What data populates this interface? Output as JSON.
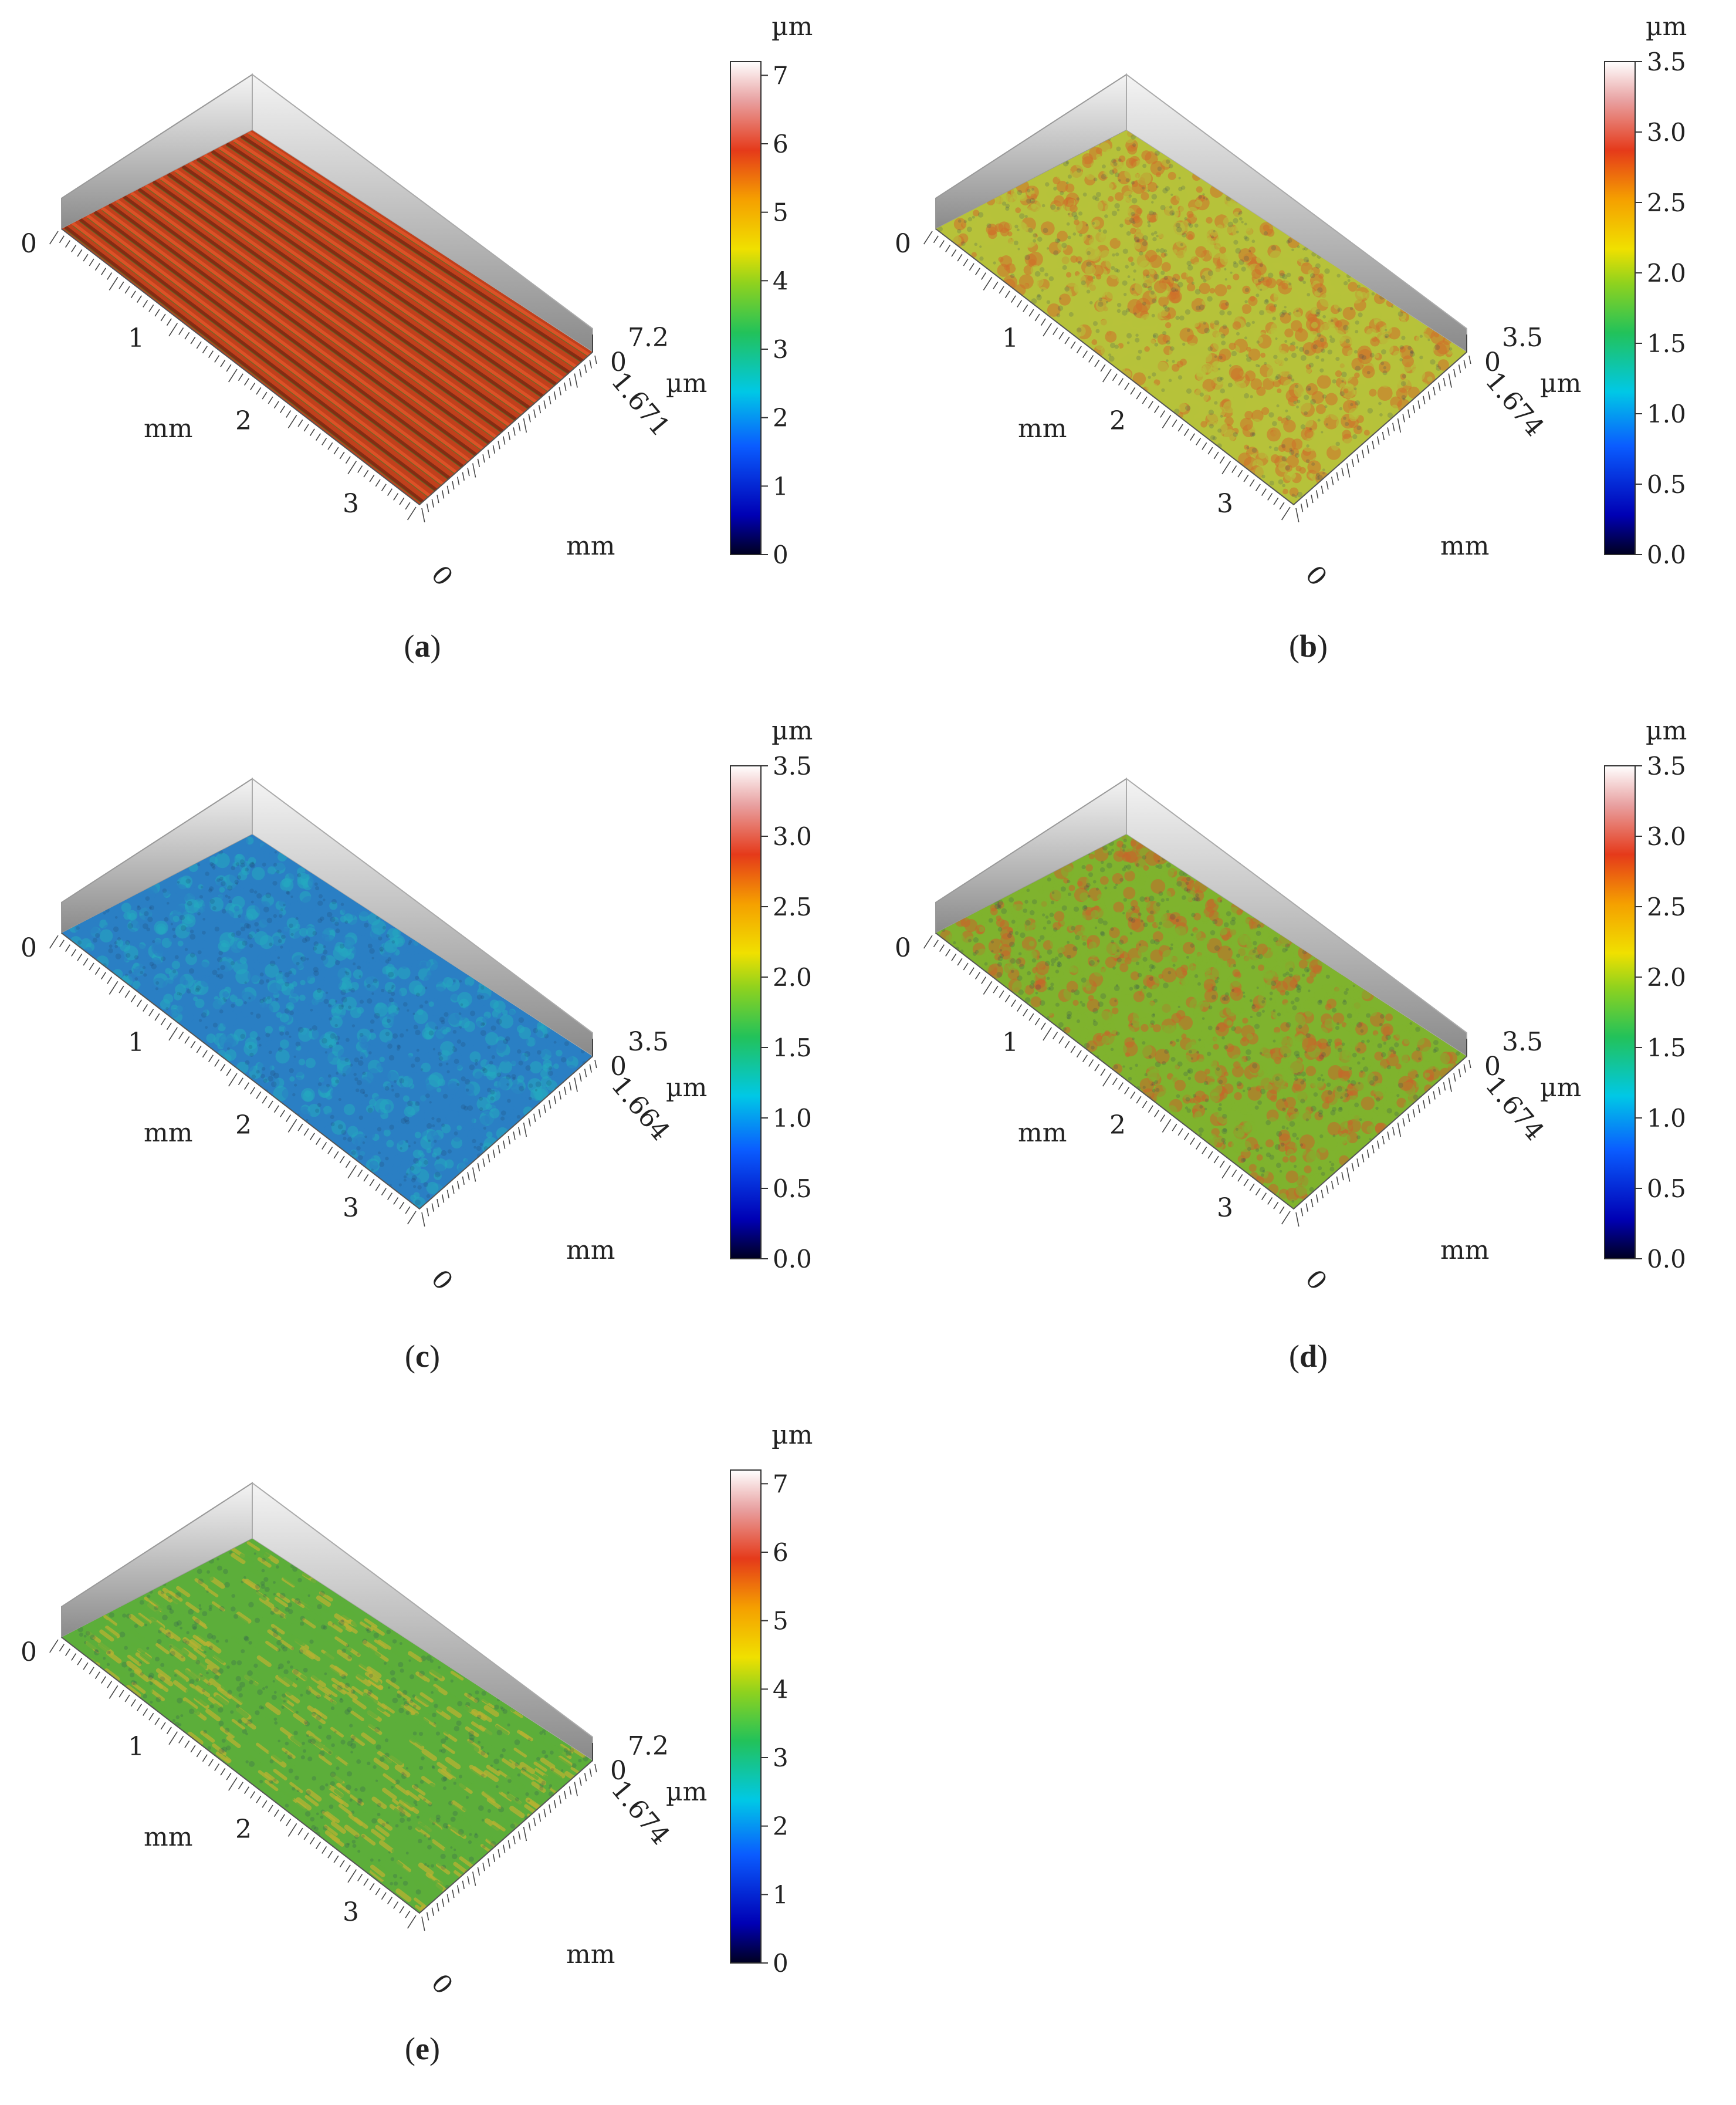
{
  "panel_labels": [
    "a",
    "b",
    "c",
    "d",
    "e"
  ],
  "chart_data": [
    {
      "type": "surface",
      "label": "a",
      "colorbar": {
        "unit": "µm",
        "min": 0,
        "max": 7.2,
        "ticks": [
          "0",
          "1",
          "2",
          "3",
          "4",
          "5",
          "6",
          "7"
        ]
      },
      "x_axis": {
        "unit": "mm",
        "ticks": [
          "0",
          "1",
          "2",
          "3"
        ]
      },
      "y_axis": {
        "unit": "mm",
        "ticks": [
          "0",
          "1.671"
        ]
      },
      "z_axis": {
        "unit": "µm",
        "ticks": [
          "0",
          "7.2"
        ]
      },
      "surface": {
        "pattern": "ridges",
        "dominant_color": "#c0401c",
        "secondary_color": "#3c7d2a"
      }
    },
    {
      "type": "surface",
      "label": "b",
      "colorbar": {
        "unit": "µm",
        "min": 0,
        "max": 3.5,
        "ticks": [
          "0.0",
          "0.5",
          "1.0",
          "1.5",
          "2.0",
          "2.5",
          "3.0",
          "3.5"
        ]
      },
      "x_axis": {
        "unit": "mm",
        "ticks": [
          "0",
          "1",
          "2",
          "3"
        ]
      },
      "y_axis": {
        "unit": "mm",
        "ticks": [
          "0",
          "1.674"
        ]
      },
      "z_axis": {
        "unit": "µm",
        "ticks": [
          "0",
          "3.5"
        ]
      },
      "surface": {
        "pattern": "rough",
        "dominant_color": "#b7c23a",
        "secondary_color": "#d0702a"
      }
    },
    {
      "type": "surface",
      "label": "c",
      "colorbar": {
        "unit": "µm",
        "min": 0,
        "max": 3.5,
        "ticks": [
          "0.0",
          "0.5",
          "1.0",
          "1.5",
          "2.0",
          "2.5",
          "3.0",
          "3.5"
        ]
      },
      "x_axis": {
        "unit": "mm",
        "ticks": [
          "0",
          "1",
          "2",
          "3"
        ]
      },
      "y_axis": {
        "unit": "mm",
        "ticks": [
          "0",
          "1.664"
        ]
      },
      "z_axis": {
        "unit": "µm",
        "ticks": [
          "0",
          "3.5"
        ]
      },
      "surface": {
        "pattern": "rough",
        "dominant_color": "#2a7fc4",
        "secondary_color": "#24a9c0"
      }
    },
    {
      "type": "surface",
      "label": "d",
      "colorbar": {
        "unit": "µm",
        "min": 0,
        "max": 3.5,
        "ticks": [
          "0.0",
          "0.5",
          "1.0",
          "1.5",
          "2.0",
          "2.5",
          "3.0",
          "3.5"
        ]
      },
      "x_axis": {
        "unit": "mm",
        "ticks": [
          "0",
          "1",
          "2",
          "3"
        ]
      },
      "y_axis": {
        "unit": "mm",
        "ticks": [
          "0",
          "1.674"
        ]
      },
      "z_axis": {
        "unit": "µm",
        "ticks": [
          "0",
          "3.5"
        ]
      },
      "surface": {
        "pattern": "rough",
        "dominant_color": "#7fb32e",
        "secondary_color": "#c8642a"
      }
    },
    {
      "type": "surface",
      "label": "e",
      "colorbar": {
        "unit": "µm",
        "min": 0,
        "max": 7.2,
        "ticks": [
          "0",
          "1",
          "2",
          "3",
          "4",
          "5",
          "6",
          "7"
        ]
      },
      "x_axis": {
        "unit": "mm",
        "ticks": [
          "0",
          "1",
          "2",
          "3"
        ]
      },
      "y_axis": {
        "unit": "mm",
        "ticks": [
          "0",
          "1.674"
        ]
      },
      "z_axis": {
        "unit": "µm",
        "ticks": [
          "0",
          "7.2"
        ]
      },
      "surface": {
        "pattern": "streaks",
        "dominant_color": "#5cae3a",
        "secondary_color": "#b9b232"
      }
    }
  ]
}
